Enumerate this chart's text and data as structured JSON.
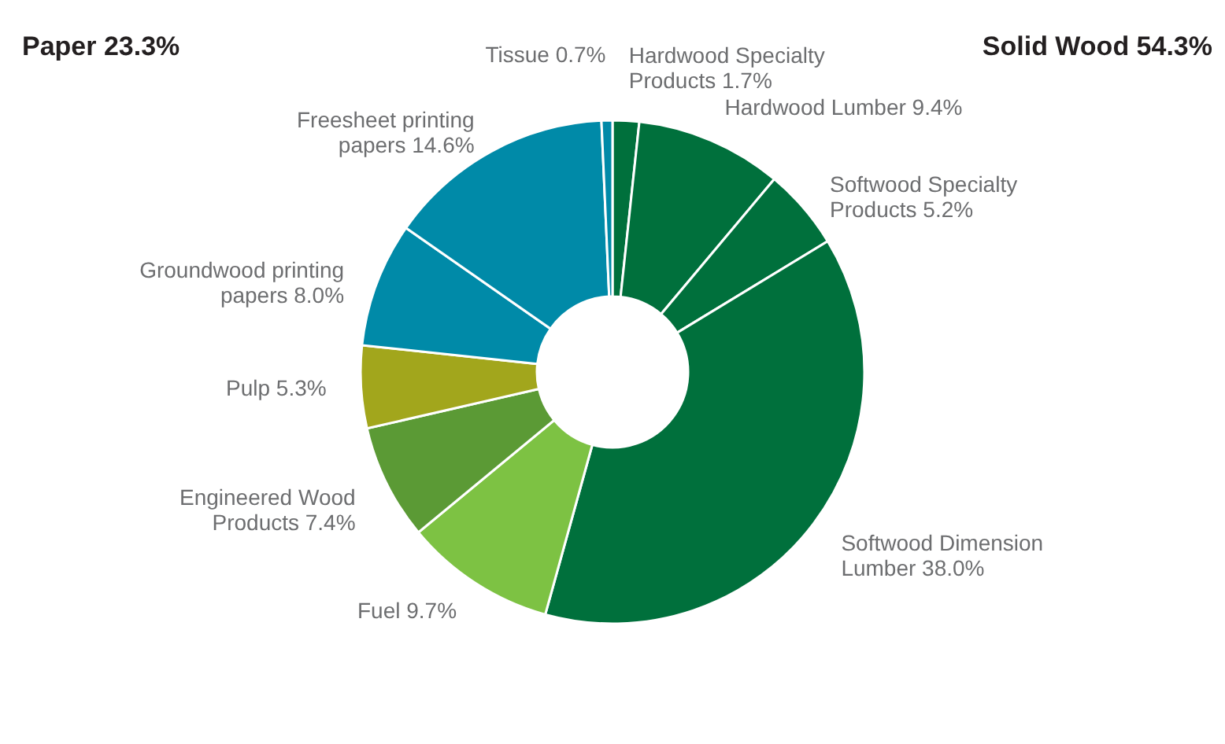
{
  "chart_data": {
    "type": "donut",
    "categories": [
      "Hardwood Specialty Products",
      "Hardwood Lumber",
      "Softwood Specialty Products",
      "Softwood Dimension Lumber",
      "Fuel",
      "Engineered Wood Products",
      "Pulp",
      "Groundwood printing papers",
      "Freesheet printing papers",
      "Tissue"
    ],
    "values": [
      1.7,
      9.4,
      5.2,
      38.0,
      9.7,
      7.4,
      5.3,
      8.0,
      14.6,
      0.7
    ],
    "value_labels": [
      "1.7%",
      "9.4%",
      "5.2%",
      "38.0%",
      "9.7%",
      "7.4%",
      "5.3%",
      "8.0%",
      "14.6%",
      "0.7%"
    ],
    "colors": [
      "#00703c",
      "#00703c",
      "#00703c",
      "#00703c",
      "#7dc243",
      "#5b9a35",
      "#a2a61c",
      "#008aa8",
      "#008aa8",
      "#008aa8"
    ],
    "annotations": [
      "Paper 23.3%",
      "Solid Wood 54.3%"
    ]
  }
}
